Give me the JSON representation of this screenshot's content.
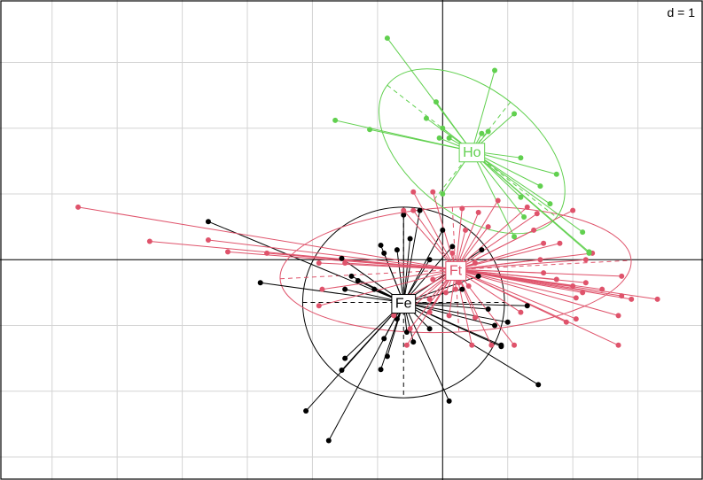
{
  "chart_data": {
    "type": "scatter",
    "scale_label": "d = 1",
    "grid": true,
    "xlim": [
      -6.8,
      4.0
    ],
    "ylim": [
      -3.35,
      3.95
    ],
    "axes_lines_at_origin": true,
    "groups": [
      {
        "name": "Fe",
        "color": "#000000",
        "center": [
          -0.6,
          -0.65
        ],
        "ellipse": {
          "rx": 1.55,
          "ry": 1.45,
          "angle_deg": 0
        },
        "points": [
          [
            -3.6,
            0.58
          ],
          [
            -2.8,
            -0.35
          ],
          [
            -1.55,
            0.02
          ],
          [
            -1.4,
            -0.25
          ],
          [
            -1.5,
            -0.45
          ],
          [
            -1.3,
            -0.32
          ],
          [
            -1.05,
            -0.45
          ],
          [
            -0.95,
            0.22
          ],
          [
            -0.9,
            0.1
          ],
          [
            -0.7,
            0.15
          ],
          [
            -0.6,
            0.68
          ],
          [
            -0.5,
            0.32
          ],
          [
            -0.35,
            0.75
          ],
          [
            -0.2,
            0.0
          ],
          [
            0.0,
            0.45
          ],
          [
            0.15,
            0.2
          ],
          [
            0.6,
            0.15
          ],
          [
            0.55,
            -0.25
          ],
          [
            0.3,
            -0.45
          ],
          [
            0.7,
            -0.75
          ],
          [
            1.3,
            -0.7
          ],
          [
            1.0,
            -0.95
          ],
          [
            0.8,
            -1.0
          ],
          [
            0.9,
            -1.3
          ],
          [
            0.9,
            -1.32
          ],
          [
            1.47,
            -1.9
          ],
          [
            0.1,
            -2.15
          ],
          [
            -0.2,
            -1.05
          ],
          [
            -0.55,
            -1.1
          ],
          [
            -0.45,
            -1.25
          ],
          [
            -0.9,
            -1.2
          ],
          [
            -0.85,
            -1.47
          ],
          [
            -1.5,
            -1.5
          ],
          [
            -1.55,
            -1.68
          ],
          [
            -0.95,
            -1.67
          ],
          [
            -2.1,
            -2.3
          ],
          [
            -1.75,
            -2.75
          ],
          [
            -0.7,
            -0.9
          ]
        ]
      },
      {
        "name": "Ft",
        "color": "#DF536B",
        "center": [
          0.2,
          -0.15
        ],
        "ellipse": {
          "rx": 2.7,
          "ry": 0.95,
          "angle_deg": 3
        },
        "points": [
          [
            -5.6,
            0.8
          ],
          [
            -4.5,
            0.28
          ],
          [
            -3.6,
            0.3
          ],
          [
            -3.3,
            0.12
          ],
          [
            -2.7,
            0.1
          ],
          [
            -1.9,
            -0.05
          ],
          [
            -1.85,
            -0.45
          ],
          [
            -1.9,
            -0.7
          ],
          [
            -1.5,
            -0.05
          ],
          [
            -0.6,
            0.75
          ],
          [
            -0.45,
            1.03
          ],
          [
            -0.15,
            1.03
          ],
          [
            -0.45,
            0.75
          ],
          [
            0.3,
            0.78
          ],
          [
            0.55,
            0.72
          ],
          [
            0.35,
            0.45
          ],
          [
            0.7,
            0.5
          ],
          [
            0.85,
            0.9
          ],
          [
            1.3,
            0.8
          ],
          [
            1.45,
            0.7
          ],
          [
            1.4,
            0.45
          ],
          [
            1.55,
            0.25
          ],
          [
            1.5,
            0.0
          ],
          [
            1.8,
            0.25
          ],
          [
            1.55,
            -0.2
          ],
          [
            1.75,
            -0.3
          ],
          [
            2.2,
            0.0
          ],
          [
            2.3,
            0.1
          ],
          [
            2.2,
            -0.35
          ],
          [
            2.0,
            -0.4
          ],
          [
            2.45,
            -0.45
          ],
          [
            2.15,
            -0.5
          ],
          [
            2.05,
            -0.58
          ],
          [
            2.75,
            -0.25
          ],
          [
            2.75,
            -0.55
          ],
          [
            2.9,
            -0.6
          ],
          [
            2.7,
            -0.85
          ],
          [
            2.05,
            -0.9
          ],
          [
            1.9,
            -0.95
          ],
          [
            1.2,
            -0.8
          ],
          [
            0.75,
            -1.3
          ],
          [
            1.1,
            -1.3
          ],
          [
            0.45,
            -1.3
          ],
          [
            0.5,
            -0.88
          ],
          [
            0.1,
            -0.85
          ],
          [
            -0.2,
            -0.8
          ],
          [
            -0.5,
            -0.75
          ],
          [
            -0.75,
            -0.85
          ],
          [
            -0.5,
            -0.55
          ],
          [
            -0.2,
            -0.6
          ],
          [
            0.05,
            -0.5
          ],
          [
            -0.15,
            -0.3
          ],
          [
            0.25,
            -0.35
          ],
          [
            0.4,
            -0.4
          ],
          [
            0.2,
            -0.45
          ],
          [
            0.15,
            0.1
          ],
          [
            0.5,
            -0.05
          ],
          [
            -0.5,
            -1.05
          ],
          [
            -0.55,
            -1.3
          ],
          [
            2.0,
            0.75
          ],
          [
            2.7,
            -1.3
          ],
          [
            3.3,
            -0.6
          ]
        ]
      },
      {
        "name": "Ho",
        "color": "#61D04F",
        "center": [
          0.45,
          1.65
        ],
        "ellipse": {
          "rx": 1.65,
          "ry": 0.95,
          "angle_deg": -38
        },
        "points": [
          [
            -0.85,
            3.37
          ],
          [
            -1.65,
            2.12
          ],
          [
            -1.12,
            1.98
          ],
          [
            -0.25,
            2.15
          ],
          [
            0.8,
            2.88
          ],
          [
            -0.1,
            2.4
          ],
          [
            -0.05,
            1.85
          ],
          [
            0.1,
            1.85
          ],
          [
            0.6,
            1.92
          ],
          [
            0.7,
            1.95
          ],
          [
            1.1,
            2.22
          ],
          [
            1.2,
            1.55
          ],
          [
            1.75,
            1.3
          ],
          [
            1.5,
            1.12
          ],
          [
            1.2,
            0.95
          ],
          [
            1.25,
            0.65
          ],
          [
            2.15,
            0.42
          ],
          [
            1.65,
            0.85
          ],
          [
            2.25,
            0.1
          ],
          [
            2.25,
            0.12
          ],
          [
            1.1,
            0.35
          ],
          [
            0.0,
            1.0
          ],
          [
            0.0,
            2.0
          ]
        ]
      }
    ]
  }
}
